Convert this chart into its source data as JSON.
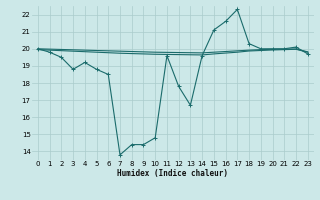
{
  "xlabel": "Humidex (Indice chaleur)",
  "bg_color": "#cce8e8",
  "grid_color": "#aacccc",
  "line_color": "#1a6b6b",
  "xlim": [
    -0.5,
    23.5
  ],
  "ylim": [
    13.5,
    22.5
  ],
  "xticks": [
    0,
    1,
    2,
    3,
    4,
    5,
    6,
    7,
    8,
    9,
    10,
    11,
    12,
    13,
    14,
    15,
    16,
    17,
    18,
    19,
    20,
    21,
    22,
    23
  ],
  "yticks": [
    14,
    15,
    16,
    17,
    18,
    19,
    20,
    21,
    22
  ],
  "series1_x": [
    0,
    1,
    2,
    3,
    4,
    5,
    6,
    7,
    8,
    9,
    10,
    11,
    12,
    13,
    14,
    15,
    16,
    17,
    18,
    19,
    20,
    21,
    22,
    23
  ],
  "series1_y": [
    20.0,
    19.8,
    19.5,
    18.8,
    19.2,
    18.8,
    18.5,
    13.8,
    14.4,
    14.4,
    14.8,
    19.6,
    17.8,
    16.7,
    19.6,
    21.1,
    21.6,
    22.3,
    20.3,
    20.0,
    20.0,
    20.0,
    20.1,
    19.7
  ],
  "series2_x": [
    0,
    1,
    2,
    3,
    4,
    5,
    6,
    7,
    8,
    9,
    10,
    11,
    12,
    13,
    14,
    15,
    16,
    17,
    18,
    19,
    20,
    21,
    22,
    23
  ],
  "series2_y": [
    19.95,
    19.92,
    19.89,
    19.86,
    19.83,
    19.8,
    19.77,
    19.74,
    19.72,
    19.7,
    19.68,
    19.67,
    19.66,
    19.65,
    19.64,
    19.7,
    19.75,
    19.8,
    19.87,
    19.9,
    19.93,
    19.95,
    19.97,
    19.8
  ],
  "series3_x": [
    0,
    1,
    2,
    3,
    4,
    5,
    6,
    7,
    8,
    9,
    10,
    11,
    12,
    13,
    14,
    15,
    16,
    17,
    18,
    19,
    20,
    21,
    22,
    23
  ],
  "series3_y": [
    20.0,
    19.98,
    19.96,
    19.94,
    19.92,
    19.9,
    19.88,
    19.86,
    19.84,
    19.82,
    19.8,
    19.79,
    19.78,
    19.77,
    19.76,
    19.8,
    19.84,
    19.88,
    19.92,
    19.95,
    19.97,
    19.98,
    19.99,
    19.82
  ]
}
